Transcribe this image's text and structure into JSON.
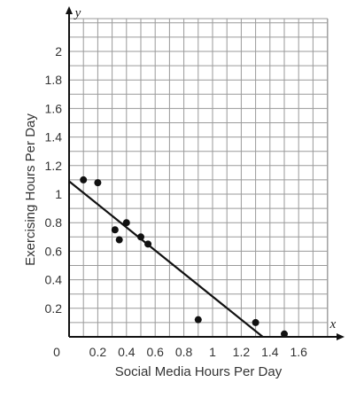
{
  "chart_data": {
    "type": "scatter",
    "title": "",
    "xlabel": "Social Media Hours Per Day",
    "ylabel": "Exercising Hours Per Day",
    "x_axis_letter": "x",
    "y_axis_letter": "y",
    "origin_label": "0",
    "xlim": [
      0,
      1.8
    ],
    "ylim": [
      0,
      2.2
    ],
    "grid": true,
    "x_ticks": [
      "0.2",
      "0.4",
      "0.6",
      "0.8",
      "1",
      "1.2",
      "1.4",
      "1.6"
    ],
    "y_ticks": [
      "0.2",
      "0.4",
      "0.6",
      "0.8",
      "1",
      "1.2",
      "1.4",
      "1.6",
      "1.8",
      "2"
    ],
    "points": [
      {
        "x": 0.1,
        "y": 1.1
      },
      {
        "x": 0.2,
        "y": 1.08
      },
      {
        "x": 0.32,
        "y": 0.75
      },
      {
        "x": 0.35,
        "y": 0.68
      },
      {
        "x": 0.4,
        "y": 0.8
      },
      {
        "x": 0.5,
        "y": 0.7
      },
      {
        "x": 0.55,
        "y": 0.65
      },
      {
        "x": 0.9,
        "y": 0.12
      },
      {
        "x": 1.3,
        "y": 0.1
      },
      {
        "x": 1.5,
        "y": 0.02
      }
    ],
    "trend_line": {
      "x0": 0,
      "y0": 1.09,
      "x1": 1.35,
      "y1": 0
    }
  }
}
